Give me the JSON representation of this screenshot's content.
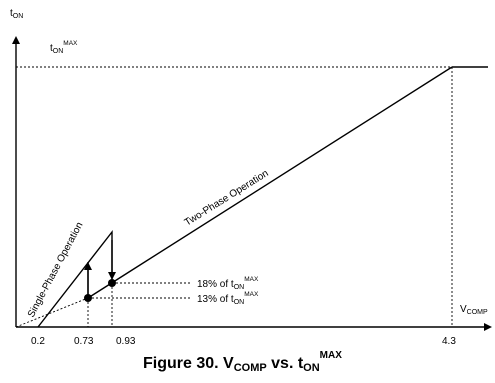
{
  "axes": {
    "y_main": "t",
    "y_sub": "ON",
    "x_main": "V",
    "x_sub": "COMP"
  },
  "top_label": {
    "main": "t",
    "sub": "ON",
    "sup": "MAX"
  },
  "x_ticks": [
    "0.2",
    "0.73",
    "0.93",
    "4.3"
  ],
  "curves": {
    "single_phase": "Single-Phase Operation",
    "two_phase": "Two-Phase Operation"
  },
  "annotations": {
    "upper": {
      "prefix": "18% of t",
      "sub": "ON",
      "sup": "MAX"
    },
    "lower": {
      "prefix": "13% of t",
      "sub": "ON",
      "sup": "MAX"
    }
  },
  "caption": {
    "prefix": "Figure 30. V",
    "sub1": "COMP",
    "middle": " vs. t",
    "sub2": "ON",
    "sup": "MAX"
  },
  "colors": {
    "ink": "#000000",
    "background": "#ffffff"
  }
}
